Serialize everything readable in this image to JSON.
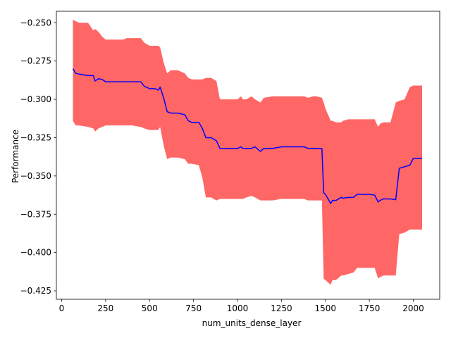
{
  "chart_data": {
    "type": "line",
    "title": "",
    "xlabel": "num_units_dense_layer",
    "ylabel": "Performance",
    "xlim": [
      -30,
      2150
    ],
    "ylim": [
      -0.4305,
      -0.2425
    ],
    "grid": false,
    "xticks": [
      0,
      250,
      500,
      750,
      1000,
      1250,
      1500,
      1750,
      2000
    ],
    "yticks": [
      -0.425,
      -0.4,
      -0.375,
      -0.35,
      -0.325,
      -0.3,
      -0.275,
      -0.25
    ],
    "xtick_labels": [
      "0",
      "250",
      "500",
      "750",
      "1000",
      "1250",
      "1500",
      "1750",
      "2000"
    ],
    "ytick_labels": [
      "−0.425",
      "−0.400",
      "−0.375",
      "−0.350",
      "−0.325",
      "−0.300",
      "−0.275",
      "−0.250"
    ],
    "colors": {
      "line": "#0000ff",
      "band": "#ff0000",
      "band_opacity": 0.6
    },
    "series": [
      {
        "x": [
          64,
          80,
          100,
          150,
          180,
          190,
          210,
          230,
          250,
          300,
          350,
          370,
          400,
          450,
          470,
          500,
          530,
          550,
          560,
          580,
          600,
          620,
          640,
          660,
          700,
          720,
          740,
          780,
          800,
          820,
          850,
          880,
          900,
          950,
          1000,
          1020,
          1030,
          1050,
          1080,
          1100,
          1130,
          1150,
          1200,
          1250,
          1300,
          1350,
          1380,
          1400,
          1430,
          1450,
          1480,
          1490,
          1500,
          1530,
          1540,
          1560,
          1590,
          1600,
          1630,
          1660,
          1680,
          1700,
          1720,
          1750,
          1780,
          1800,
          1810,
          1830,
          1850,
          1870,
          1900,
          1920,
          1950,
          1980,
          2000,
          2050
        ],
        "y": [
          -0.28,
          -0.283,
          -0.2835,
          -0.2845,
          -0.2845,
          -0.288,
          -0.2865,
          -0.287,
          -0.2885,
          -0.2885,
          -0.2885,
          -0.2885,
          -0.2885,
          -0.2885,
          -0.2915,
          -0.293,
          -0.293,
          -0.294,
          -0.292,
          -0.299,
          -0.308,
          -0.309,
          -0.309,
          -0.309,
          -0.31,
          -0.314,
          -0.315,
          -0.315,
          -0.319,
          -0.325,
          -0.325,
          -0.327,
          -0.332,
          -0.332,
          -0.332,
          -0.331,
          -0.332,
          -0.332,
          -0.332,
          -0.331,
          -0.334,
          -0.332,
          -0.332,
          -0.331,
          -0.331,
          -0.331,
          -0.331,
          -0.332,
          -0.332,
          -0.332,
          -0.332,
          -0.361,
          -0.362,
          -0.368,
          -0.366,
          -0.366,
          -0.364,
          -0.3645,
          -0.364,
          -0.364,
          -0.362,
          -0.362,
          -0.362,
          -0.362,
          -0.3625,
          -0.367,
          -0.366,
          -0.365,
          -0.365,
          -0.365,
          -0.3655,
          -0.345,
          -0.344,
          -0.343,
          -0.3385,
          -0.3385
        ],
        "lower": [
          -0.314,
          -0.317,
          -0.317,
          -0.318,
          -0.319,
          -0.321,
          -0.319,
          -0.318,
          -0.317,
          -0.317,
          -0.317,
          -0.317,
          -0.317,
          -0.318,
          -0.319,
          -0.32,
          -0.32,
          -0.32,
          -0.318,
          -0.33,
          -0.339,
          -0.338,
          -0.338,
          -0.338,
          -0.339,
          -0.342,
          -0.342,
          -0.343,
          -0.351,
          -0.364,
          -0.364,
          -0.366,
          -0.365,
          -0.365,
          -0.365,
          -0.365,
          -0.365,
          -0.364,
          -0.363,
          -0.364,
          -0.366,
          -0.366,
          -0.366,
          -0.365,
          -0.365,
          -0.365,
          -0.365,
          -0.366,
          -0.366,
          -0.366,
          -0.366,
          -0.417,
          -0.418,
          -0.421,
          -0.418,
          -0.418,
          -0.415,
          -0.415,
          -0.414,
          -0.413,
          -0.41,
          -0.41,
          -0.41,
          -0.41,
          -0.41,
          -0.417,
          -0.416,
          -0.415,
          -0.415,
          -0.415,
          -0.415,
          -0.388,
          -0.387,
          -0.385,
          -0.385,
          -0.385
        ],
        "upper": [
          -0.248,
          -0.249,
          -0.25,
          -0.25,
          -0.255,
          -0.254,
          -0.256,
          -0.259,
          -0.261,
          -0.261,
          -0.261,
          -0.26,
          -0.26,
          -0.26,
          -0.263,
          -0.265,
          -0.265,
          -0.265,
          -0.266,
          -0.276,
          -0.283,
          -0.281,
          -0.281,
          -0.281,
          -0.283,
          -0.286,
          -0.287,
          -0.287,
          -0.287,
          -0.286,
          -0.286,
          -0.288,
          -0.3,
          -0.3,
          -0.3,
          -0.298,
          -0.3,
          -0.3,
          -0.298,
          -0.3,
          -0.302,
          -0.299,
          -0.298,
          -0.298,
          -0.298,
          -0.298,
          -0.298,
          -0.299,
          -0.298,
          -0.298,
          -0.299,
          -0.302,
          -0.306,
          -0.314,
          -0.314,
          -0.315,
          -0.315,
          -0.314,
          -0.313,
          -0.313,
          -0.313,
          -0.313,
          -0.313,
          -0.313,
          -0.313,
          -0.318,
          -0.316,
          -0.315,
          -0.315,
          -0.315,
          -0.302,
          -0.301,
          -0.3,
          -0.292,
          -0.291,
          -0.291
        ]
      }
    ]
  }
}
